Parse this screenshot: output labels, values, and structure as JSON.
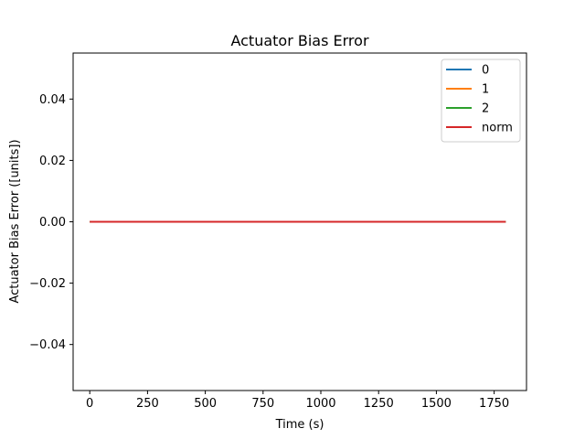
{
  "chart_data": {
    "type": "line",
    "title": "Actuator Bias Error",
    "xlabel": "Time (s)",
    "ylabel": "Actuator Bias Error ([units])",
    "xlim": [
      -72,
      1890
    ],
    "ylim": [
      -0.055,
      0.055
    ],
    "x_ticks": [
      0,
      250,
      500,
      750,
      1000,
      1250,
      1500,
      1750
    ],
    "y_ticks": [
      -0.04,
      -0.02,
      0.0,
      0.02,
      0.04
    ],
    "x_tick_labels": [
      "0",
      "250",
      "500",
      "750",
      "1000",
      "1250",
      "1500",
      "1750"
    ],
    "y_tick_labels": [
      "−0.04",
      "−0.02",
      "0.00",
      "0.02",
      "0.04"
    ],
    "grid": false,
    "legend_position": "top-right",
    "series": [
      {
        "name": "0",
        "color": "#1f77b4",
        "x": [
          0,
          1800
        ],
        "y": [
          0,
          0
        ]
      },
      {
        "name": "1",
        "color": "#ff7f0e",
        "x": [
          0,
          1800
        ],
        "y": [
          0,
          0
        ]
      },
      {
        "name": "2",
        "color": "#2ca02c",
        "x": [
          0,
          1800
        ],
        "y": [
          0,
          0
        ]
      },
      {
        "name": "norm",
        "color": "#d62728",
        "x": [
          0,
          1800
        ],
        "y": [
          0,
          0
        ]
      }
    ]
  }
}
